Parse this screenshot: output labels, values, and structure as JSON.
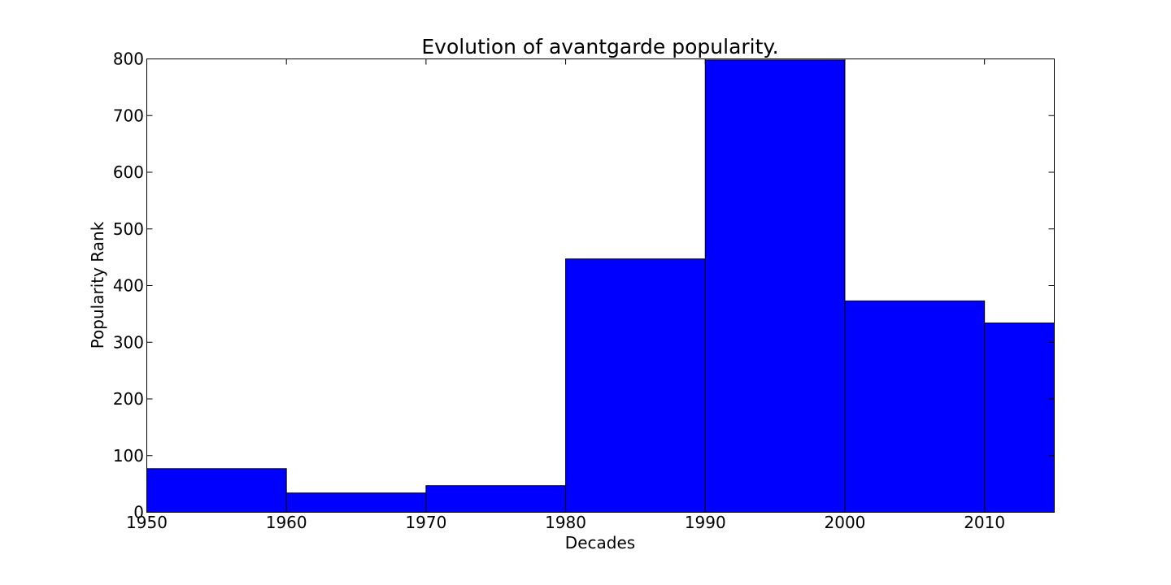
{
  "chart_data": {
    "type": "bar",
    "title": "Evolution of avantgarde popularity.",
    "xlabel": "Decades",
    "ylabel": "Popularity Rank",
    "bins": [
      {
        "start": 1950,
        "end": 1960,
        "value": 77
      },
      {
        "start": 1960,
        "end": 1970,
        "value": 34
      },
      {
        "start": 1970,
        "end": 1980,
        "value": 47
      },
      {
        "start": 1980,
        "end": 1990,
        "value": 447
      },
      {
        "start": 1990,
        "end": 2000,
        "value": 798
      },
      {
        "start": 2000,
        "end": 2010,
        "value": 373
      },
      {
        "start": 2010,
        "end": 2015,
        "value": 334
      }
    ],
    "xlim": [
      1950,
      2015
    ],
    "ylim": [
      0,
      800
    ],
    "xticks": [
      1950,
      1960,
      1970,
      1980,
      1990,
      2000,
      2010
    ],
    "yticks": [
      0,
      100,
      200,
      300,
      400,
      500,
      600,
      700,
      800
    ],
    "bar_color": "#0000ff",
    "grid": false,
    "legend": "none"
  }
}
